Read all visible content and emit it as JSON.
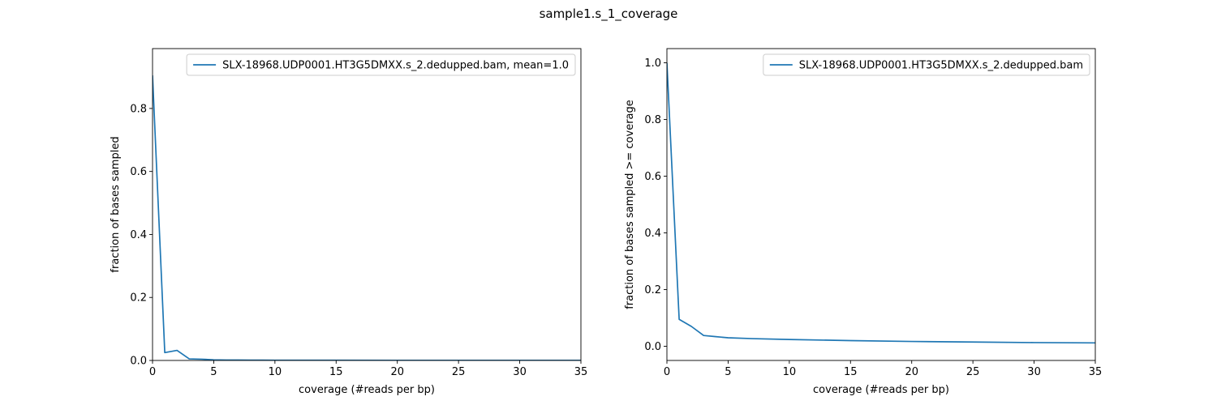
{
  "figure": {
    "title": "sample1.s_1_coverage"
  },
  "chart_data": [
    {
      "type": "line",
      "title": "",
      "xlabel": "coverage (#reads per bp)",
      "ylabel": "fraction of bases sampled",
      "xlim": [
        0,
        35
      ],
      "ylim": [
        0,
        0.99
      ],
      "xticks": [
        "0",
        "5",
        "10",
        "15",
        "20",
        "25",
        "30",
        "35"
      ],
      "yticks": [
        "0.0",
        "0.2",
        "0.4",
        "0.6",
        "0.8"
      ],
      "grid": false,
      "legend_position": "top-right",
      "color": "#1f77b4",
      "series": [
        {
          "name": "SLX-18968.UDP0001.HT3G5DMXX.s_2.dedupped.bam, mean=1.0",
          "x": [
            0,
            1,
            2,
            3,
            4,
            5,
            6,
            7,
            8,
            9,
            10,
            12,
            15,
            20,
            25,
            30,
            35
          ],
          "y": [
            0.905,
            0.025,
            0.032,
            0.005,
            0.004,
            0.002,
            0.0015,
            0.0012,
            0.001,
            0.0009,
            0.0008,
            0.0007,
            0.0006,
            0.0005,
            0.0004,
            0.0003,
            0.0003
          ]
        }
      ]
    },
    {
      "type": "line",
      "title": "",
      "xlabel": "coverage (#reads per bp)",
      "ylabel": "fraction of bases sampled >= coverage",
      "xlim": [
        0,
        35
      ],
      "ylim": [
        -0.05,
        1.05
      ],
      "xticks": [
        "0",
        "5",
        "10",
        "15",
        "20",
        "25",
        "30",
        "35"
      ],
      "yticks": [
        "0.0",
        "0.2",
        "0.4",
        "0.6",
        "0.8",
        "1.0"
      ],
      "grid": false,
      "legend_position": "top-right",
      "color": "#1f77b4",
      "series": [
        {
          "name": "SLX-18968.UDP0001.HT3G5DMXX.s_2.dedupped.bam",
          "x": [
            0,
            1,
            2,
            3,
            4,
            5,
            7,
            10,
            15,
            20,
            25,
            30,
            35
          ],
          "y": [
            1.0,
            0.095,
            0.07,
            0.038,
            0.034,
            0.03,
            0.027,
            0.024,
            0.02,
            0.017,
            0.015,
            0.013,
            0.012
          ]
        }
      ]
    }
  ]
}
